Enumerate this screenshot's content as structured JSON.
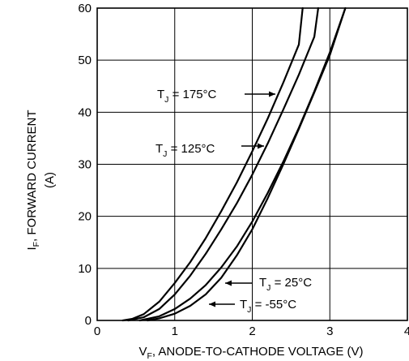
{
  "chart_data": {
    "type": "line",
    "xlabel": {
      "main": "V",
      "sub": "F",
      "rest": ", ANODE-TO-CATHODE VOLTAGE (V)"
    },
    "ylabel": {
      "main": "I",
      "sub": "F",
      "rest": ", FORWARD CURRENT",
      "line2": "(A)"
    },
    "xlim": [
      0,
      4
    ],
    "ylim": [
      0,
      60
    ],
    "x_ticks": [
      "0",
      "1",
      "2",
      "3",
      "4"
    ],
    "y_ticks": [
      "0",
      "10",
      "20",
      "30",
      "40",
      "50",
      "60"
    ],
    "grid": true,
    "series": [
      {
        "name": "TJ = 175°C",
        "label": {
          "main": "T",
          "sub": "J",
          "rest": " = 175°C"
        },
        "x": [
          0.33,
          0.45,
          0.6,
          0.8,
          1.0,
          1.2,
          1.4,
          1.6,
          1.8,
          2.0,
          2.2,
          2.4,
          2.6,
          2.65
        ],
        "y": [
          0,
          0.3,
          1.2,
          3.6,
          7.2,
          11.2,
          15.8,
          21,
          26.5,
          32.5,
          38.8,
          45.7,
          53,
          60
        ]
      },
      {
        "name": "TJ = 125°C",
        "label": {
          "main": "T",
          "sub": "J",
          "rest": " = 125°C"
        },
        "x": [
          0.4,
          0.6,
          0.8,
          1.0,
          1.2,
          1.4,
          1.6,
          1.8,
          2.0,
          2.2,
          2.4,
          2.6,
          2.8,
          2.85
        ],
        "y": [
          0,
          0.6,
          2.2,
          5,
          8.6,
          12.8,
          17.5,
          22.5,
          28,
          34,
          40.5,
          47.2,
          54.5,
          60
        ]
      },
      {
        "name": "TJ = 25°C",
        "label": {
          "main": "T",
          "sub": "J",
          "rest": " = 25°C"
        },
        "x": [
          0.55,
          0.8,
          1.0,
          1.2,
          1.4,
          1.6,
          1.8,
          2.0,
          2.2,
          2.4,
          2.6,
          2.8,
          3.0,
          3.2
        ],
        "y": [
          0,
          0.8,
          2.2,
          4.2,
          6.8,
          10.2,
          14.2,
          19,
          24.5,
          30.5,
          37,
          44,
          51.5,
          60
        ]
      },
      {
        "name": "TJ = -55°C",
        "label": {
          "main": "T",
          "sub": "J",
          "rest": " = -55°C"
        },
        "x": [
          0.65,
          0.8,
          1.0,
          1.2,
          1.4,
          1.6,
          1.8,
          2.0,
          2.2,
          2.4,
          2.6,
          2.8,
          3.0,
          3.2
        ],
        "y": [
          0,
          0.4,
          1.3,
          2.8,
          5,
          8.2,
          12.5,
          17.5,
          23.5,
          30,
          36.8,
          43.8,
          51,
          60
        ]
      }
    ],
    "legend": "inline-annotations"
  }
}
